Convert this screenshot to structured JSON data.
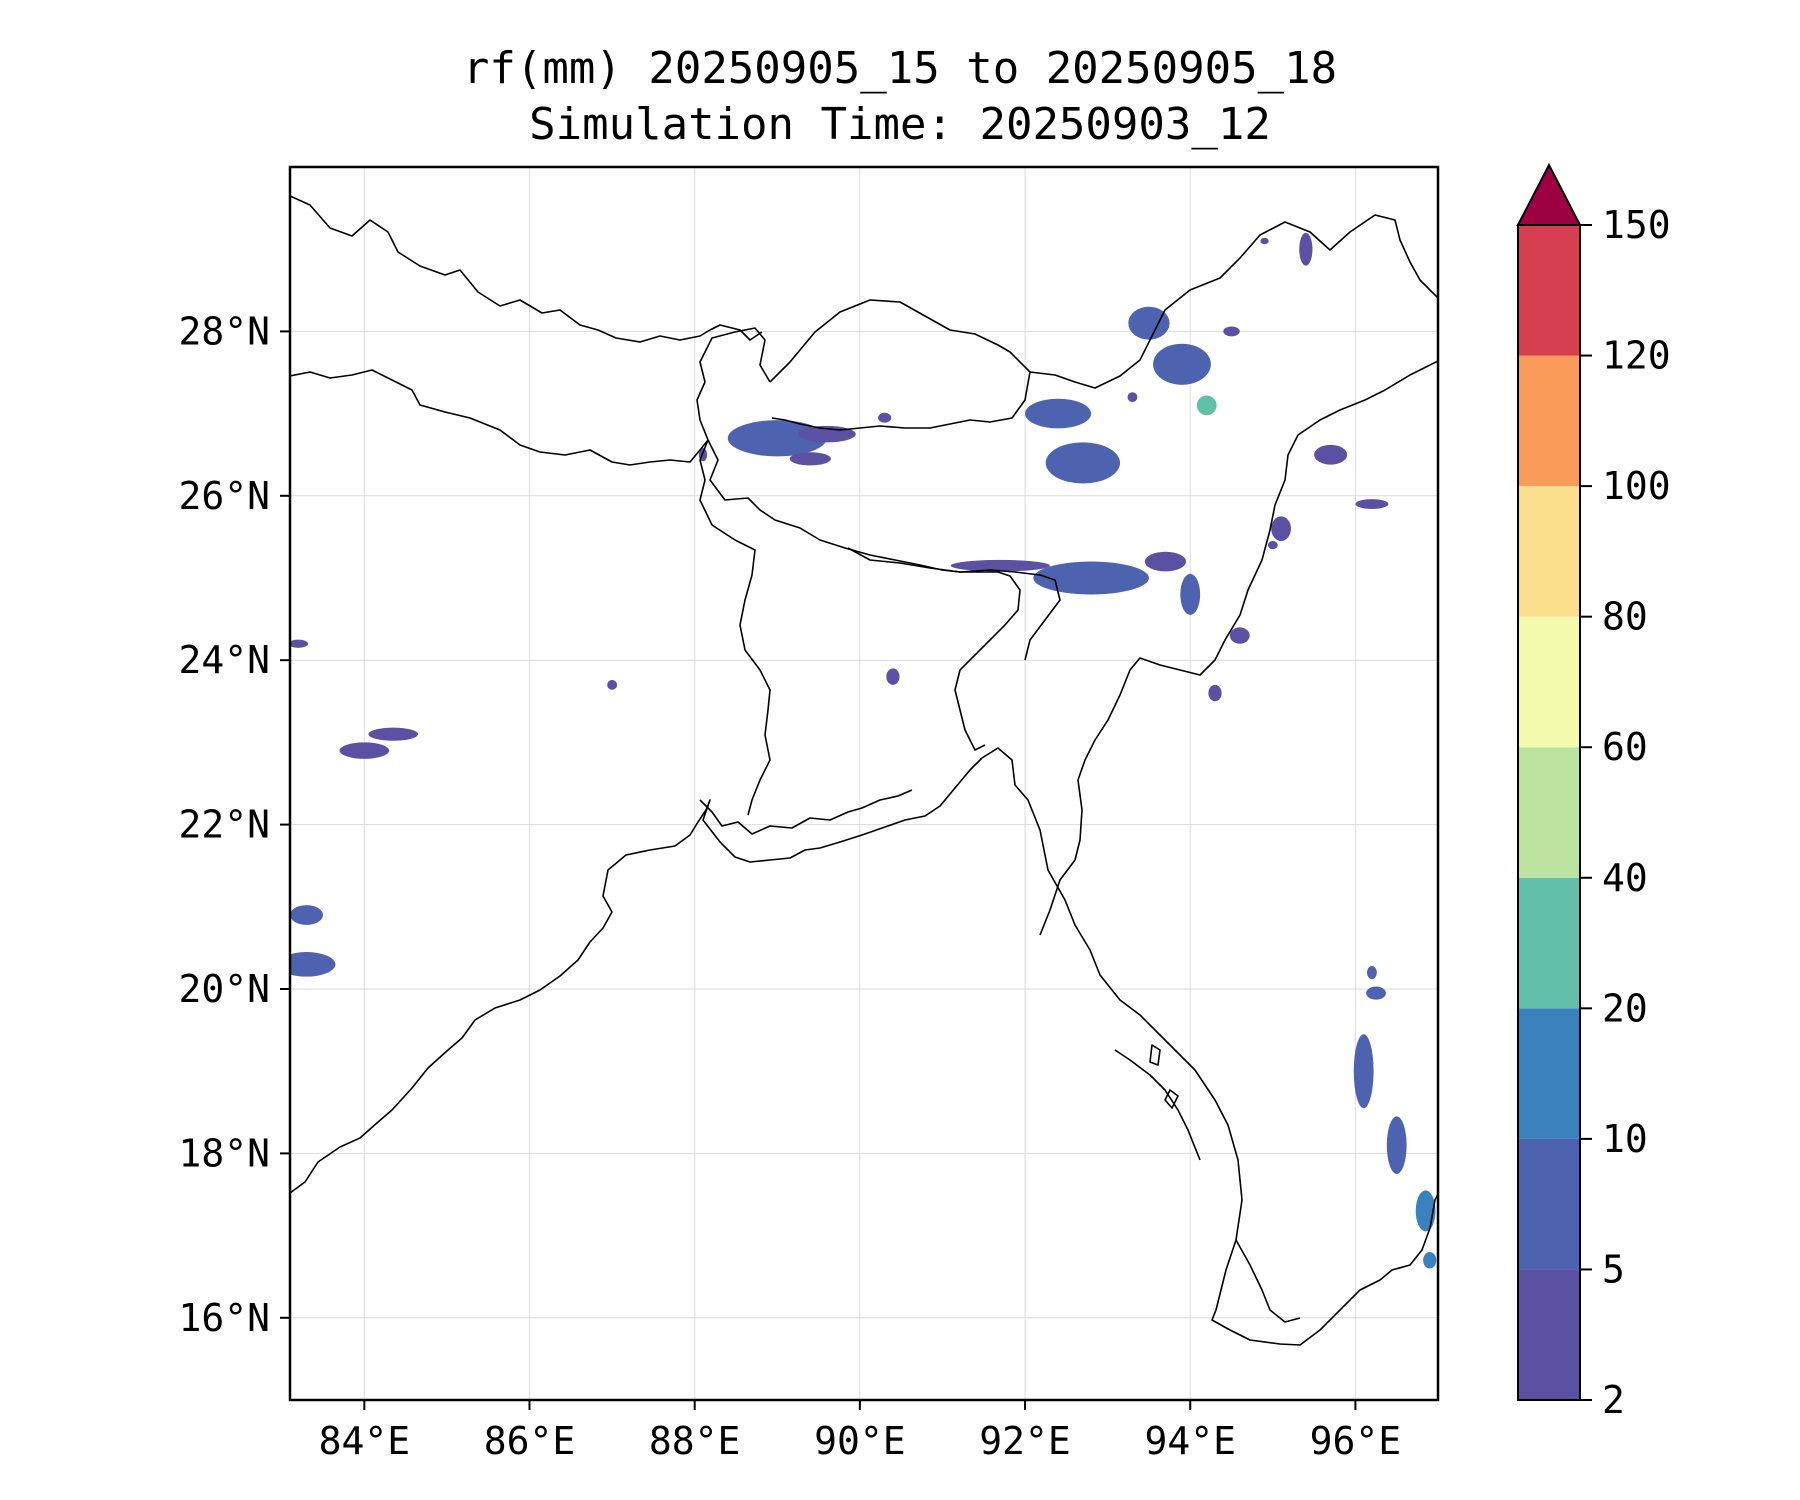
{
  "title_line1": "rf(mm) 20250905_15 to 20250905_18",
  "title_line2": "Simulation Time: 20250903_12",
  "map": {
    "lon_range": [
      83.1,
      97.0
    ],
    "lat_range": [
      15.0,
      30.0
    ],
    "lon_ticks": [
      {
        "value": 84,
        "label": "84°E"
      },
      {
        "value": 86,
        "label": "86°E"
      },
      {
        "value": 88,
        "label": "88°E"
      },
      {
        "value": 90,
        "label": "90°E"
      },
      {
        "value": 92,
        "label": "92°E"
      },
      {
        "value": 94,
        "label": "94°E"
      },
      {
        "value": 96,
        "label": "96°E"
      }
    ],
    "lat_ticks": [
      {
        "value": 16,
        "label": "16°N"
      },
      {
        "value": 18,
        "label": "18°N"
      },
      {
        "value": 20,
        "label": "20°N"
      },
      {
        "value": 22,
        "label": "22°N"
      },
      {
        "value": 24,
        "label": "24°N"
      },
      {
        "value": 26,
        "label": "26°N"
      },
      {
        "value": 28,
        "label": "28°N"
      }
    ],
    "grid": true
  },
  "colorbar": {
    "levels": [
      "2",
      "5",
      "10",
      "20",
      "40",
      "60",
      "80",
      "100",
      "120",
      "150"
    ],
    "colors": [
      "#5b51a3",
      "#4e63b0",
      "#3a82bd",
      "#62bfaa",
      "#bde3a0",
      "#f4fbad",
      "#fbdf8d",
      "#f99c59",
      "#d53f50"
    ],
    "extend_color": "#9e0142",
    "extend": "max"
  },
  "rain_cells": [
    {
      "lon": 89.0,
      "lat": 26.7,
      "rlon": 0.6,
      "rlat": 0.22,
      "level": 1
    },
    {
      "lon": 89.6,
      "lat": 26.75,
      "rlon": 0.35,
      "rlat": 0.1,
      "level": 0
    },
    {
      "lon": 89.4,
      "lat": 26.45,
      "rlon": 0.25,
      "rlat": 0.08,
      "level": 0
    },
    {
      "lon": 93.5,
      "lat": 28.1,
      "rlon": 0.25,
      "rlat": 0.2,
      "level": 1
    },
    {
      "lon": 93.9,
      "lat": 27.6,
      "rlon": 0.35,
      "rlat": 0.25,
      "level": 1
    },
    {
      "lon": 94.2,
      "lat": 27.1,
      "rlon": 0.12,
      "rlat": 0.12,
      "level": 3
    },
    {
      "lon": 92.4,
      "lat": 27.0,
      "rlon": 0.4,
      "rlat": 0.18,
      "level": 1
    },
    {
      "lon": 92.7,
      "lat": 26.4,
      "rlon": 0.45,
      "rlat": 0.25,
      "level": 1
    },
    {
      "lon": 92.8,
      "lat": 25.0,
      "rlon": 0.7,
      "rlat": 0.2,
      "level": 1
    },
    {
      "lon": 91.7,
      "lat": 25.15,
      "rlon": 0.6,
      "rlat": 0.07,
      "level": 0
    },
    {
      "lon": 93.7,
      "lat": 25.2,
      "rlon": 0.25,
      "rlat": 0.12,
      "level": 0
    },
    {
      "lon": 94.0,
      "lat": 24.8,
      "rlon": 0.12,
      "rlat": 0.25,
      "level": 1
    },
    {
      "lon": 95.7,
      "lat": 26.5,
      "rlon": 0.2,
      "rlat": 0.12,
      "level": 0
    },
    {
      "lon": 95.1,
      "lat": 25.6,
      "rlon": 0.12,
      "rlat": 0.15,
      "level": 0
    },
    {
      "lon": 96.2,
      "lat": 25.9,
      "rlon": 0.2,
      "rlat": 0.06,
      "level": 0
    },
    {
      "lon": 95.4,
      "lat": 29.0,
      "rlon": 0.08,
      "rlat": 0.2,
      "level": 0
    },
    {
      "lon": 84.0,
      "lat": 22.9,
      "rlon": 0.3,
      "rlat": 0.1,
      "level": 0
    },
    {
      "lon": 84.35,
      "lat": 23.1,
      "rlon": 0.3,
      "rlat": 0.08,
      "level": 0
    },
    {
      "lon": 83.3,
      "lat": 20.9,
      "rlon": 0.2,
      "rlat": 0.12,
      "level": 1
    },
    {
      "lon": 83.3,
      "lat": 20.3,
      "rlon": 0.35,
      "rlat": 0.15,
      "level": 1
    },
    {
      "lon": 96.1,
      "lat": 19.0,
      "rlon": 0.12,
      "rlat": 0.45,
      "level": 1
    },
    {
      "lon": 96.5,
      "lat": 18.1,
      "rlon": 0.12,
      "rlat": 0.35,
      "level": 1
    },
    {
      "lon": 96.85,
      "lat": 17.3,
      "rlon": 0.12,
      "rlat": 0.25,
      "level": 2
    },
    {
      "lon": 96.25,
      "lat": 19.95,
      "rlon": 0.12,
      "rlat": 0.08,
      "level": 1
    },
    {
      "lon": 96.2,
      "lat": 20.2,
      "rlon": 0.06,
      "rlat": 0.08,
      "level": 1
    },
    {
      "lon": 96.9,
      "lat": 16.7,
      "rlon": 0.08,
      "rlat": 0.1,
      "level": 2
    },
    {
      "lon": 94.6,
      "lat": 24.3,
      "rlon": 0.12,
      "rlat": 0.1,
      "level": 0
    },
    {
      "lon": 94.3,
      "lat": 23.6,
      "rlon": 0.08,
      "rlat": 0.1,
      "level": 0
    },
    {
      "lon": 83.2,
      "lat": 24.2,
      "rlon": 0.12,
      "rlat": 0.05,
      "level": 0
    },
    {
      "lon": 87.0,
      "lat": 23.7,
      "rlon": 0.06,
      "rlat": 0.06,
      "level": 0
    },
    {
      "lon": 90.4,
      "lat": 23.8,
      "rlon": 0.08,
      "rlat": 0.1,
      "level": 0
    },
    {
      "lon": 88.1,
      "lat": 26.5,
      "rlon": 0.05,
      "rlat": 0.08,
      "level": 0
    },
    {
      "lon": 90.3,
      "lat": 26.95,
      "rlon": 0.08,
      "rlat": 0.06,
      "level": 0
    },
    {
      "lon": 94.5,
      "lat": 28.0,
      "rlon": 0.1,
      "rlat": 0.06,
      "level": 0
    },
    {
      "lon": 93.3,
      "lat": 27.2,
      "rlon": 0.06,
      "rlat": 0.06,
      "level": 0
    },
    {
      "lon": 94.9,
      "lat": 29.1,
      "rlon": 0.05,
      "rlat": 0.04,
      "level": 0
    },
    {
      "lon": 95.0,
      "lat": 25.4,
      "rlon": 0.06,
      "rlat": 0.05,
      "level": 0
    }
  ]
}
